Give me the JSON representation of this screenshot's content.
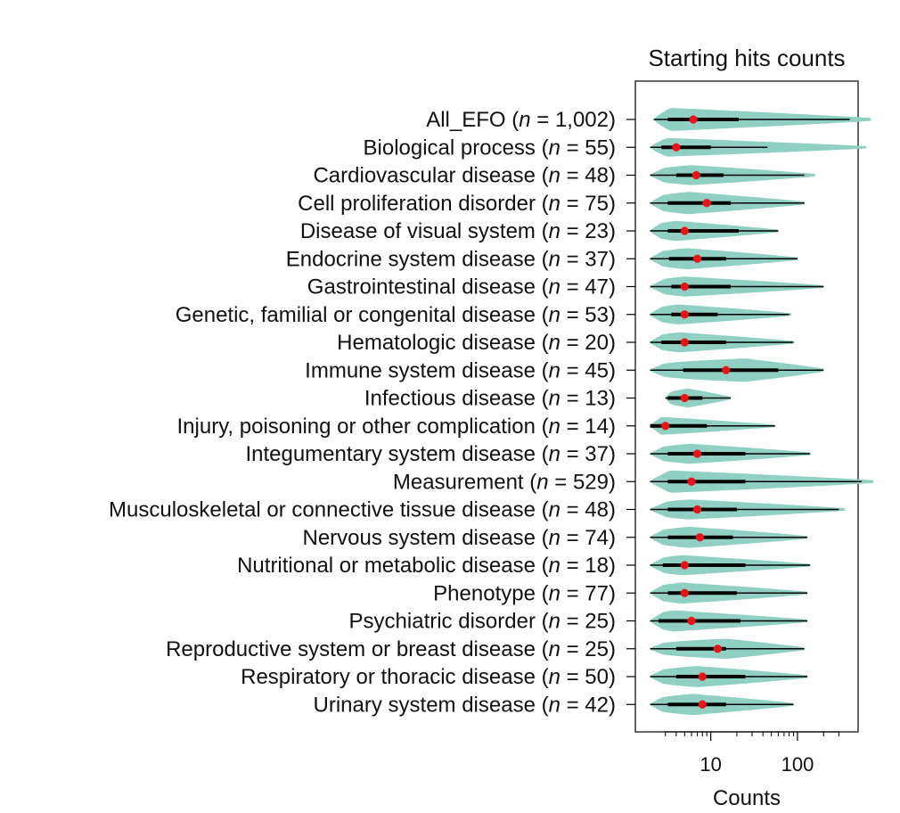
{
  "chart_data": {
    "type": "violin",
    "title": "Starting hits counts",
    "xlabel": "Counts",
    "ylabel": "",
    "x_scale": "log10",
    "xlim": [
      1.35,
      500
    ],
    "x_ticks": [
      {
        "value": 10,
        "label": "10"
      },
      {
        "value": 100,
        "label": "100"
      }
    ],
    "colors": {
      "violin": "#8fd0c3",
      "median": "#e8161b",
      "line": "#000000"
    },
    "categories": [
      {
        "name": "All_EFO",
        "n": "1,002",
        "min": 2.2,
        "q1": 3.2,
        "median": 6.3,
        "q3": 21,
        "max": 700,
        "whisker_hi": 400,
        "width": 0.42,
        "peak": 0.06
      },
      {
        "name": "Biological process",
        "n": "55",
        "min": 2.0,
        "q1": 2.7,
        "median": 4.0,
        "q3": 10,
        "max": 620,
        "whisker_hi": 45,
        "width": 0.34,
        "peak": 0.06
      },
      {
        "name": "Cardiovascular disease",
        "n": "48",
        "min": 2.0,
        "q1": 4.0,
        "median": 6.8,
        "q3": 14,
        "max": 160,
        "whisker_hi": 120,
        "width": 0.36,
        "peak": 0.25
      },
      {
        "name": "Cell proliferation disorder",
        "n": "75",
        "min": 2.0,
        "q1": 3.2,
        "median": 9.0,
        "q3": 17,
        "max": 120,
        "whisker_hi": 120,
        "width": 0.4,
        "peak": 0.25
      },
      {
        "name": "Disease of visual system",
        "n": "23",
        "min": 2.0,
        "q1": 3.2,
        "median": 5.0,
        "q3": 21,
        "max": 60,
        "whisker_hi": 60,
        "width": 0.36,
        "peak": 0.2
      },
      {
        "name": "Endocrine system disease",
        "n": "37",
        "min": 2.0,
        "q1": 3.3,
        "median": 7.0,
        "q3": 15,
        "max": 100,
        "whisker_hi": 100,
        "width": 0.38,
        "peak": 0.25
      },
      {
        "name": "Gastrointestinal disease",
        "n": "47",
        "min": 2.0,
        "q1": 3.5,
        "median": 5.0,
        "q3": 17,
        "max": 200,
        "whisker_hi": 200,
        "width": 0.36,
        "peak": 0.2
      },
      {
        "name": "Genetic, familial or congenital disease",
        "n": "53",
        "min": 2.0,
        "q1": 3.5,
        "median": 5.0,
        "q3": 12,
        "max": 85,
        "whisker_hi": 80,
        "width": 0.36,
        "peak": 0.2
      },
      {
        "name": "Hematologic disease",
        "n": "20",
        "min": 2.0,
        "q1": 2.7,
        "median": 5.0,
        "q3": 15,
        "max": 90,
        "whisker_hi": 90,
        "width": 0.36,
        "peak": 0.2
      },
      {
        "name": "Immune system disease",
        "n": "45",
        "min": 2.0,
        "q1": 4.8,
        "median": 15,
        "q3": 60,
        "max": 200,
        "whisker_hi": 200,
        "width": 0.42,
        "peak": 0.55
      },
      {
        "name": "Infectious disease",
        "n": "13",
        "min": 3.0,
        "q1": 3.2,
        "median": 5.0,
        "q3": 8.0,
        "max": 17,
        "whisker_hi": 17,
        "width": 0.34,
        "peak": 0.35
      },
      {
        "name": "Injury, poisoning or other complication",
        "n": "14",
        "min": 2.0,
        "q1": 2.0,
        "median": 3.0,
        "q3": 9.0,
        "max": 55,
        "whisker_hi": 55,
        "width": 0.32,
        "peak": 0.1
      },
      {
        "name": "Integumentary system disease",
        "n": "37",
        "min": 2.0,
        "q1": 3.2,
        "median": 7.0,
        "q3": 25,
        "max": 140,
        "whisker_hi": 140,
        "width": 0.36,
        "peak": 0.25
      },
      {
        "name": "Measurement",
        "n": "529",
        "min": 2.0,
        "q1": 3.2,
        "median": 6.0,
        "q3": 25,
        "max": 750,
        "whisker_hi": 550,
        "width": 0.4,
        "peak": 0.1
      },
      {
        "name": "Musculoskeletal or connective tissue disease",
        "n": "48",
        "min": 2.0,
        "q1": 3.2,
        "median": 7.0,
        "q3": 20,
        "max": 350,
        "whisker_hi": 300,
        "width": 0.36,
        "peak": 0.2
      },
      {
        "name": "Nervous system disease",
        "n": "74",
        "min": 2.0,
        "q1": 3.2,
        "median": 7.5,
        "q3": 18,
        "max": 130,
        "whisker_hi": 130,
        "width": 0.38,
        "peak": 0.25
      },
      {
        "name": "Nutritional or metabolic disease",
        "n": "18",
        "min": 2.0,
        "q1": 2.8,
        "median": 5.0,
        "q3": 25,
        "max": 140,
        "whisker_hi": 140,
        "width": 0.36,
        "peak": 0.2
      },
      {
        "name": "Phenotype",
        "n": "77",
        "min": 2.0,
        "q1": 3.2,
        "median": 5.0,
        "q3": 20,
        "max": 130,
        "whisker_hi": 130,
        "width": 0.38,
        "peak": 0.2
      },
      {
        "name": "Psychiatric disorder",
        "n": "25",
        "min": 2.0,
        "q1": 2.5,
        "median": 6.0,
        "q3": 22,
        "max": 130,
        "whisker_hi": 130,
        "width": 0.38,
        "peak": 0.15
      },
      {
        "name": "Reproductive system or breast disease",
        "n": "25",
        "min": 2.0,
        "q1": 4.0,
        "median": 12,
        "q3": 15,
        "max": 120,
        "whisker_hi": 120,
        "width": 0.36,
        "peak": 0.5
      },
      {
        "name": "Respiratory or thoracic disease",
        "n": "50",
        "min": 2.0,
        "q1": 4.0,
        "median": 8.0,
        "q3": 25,
        "max": 130,
        "whisker_hi": 130,
        "width": 0.38,
        "peak": 0.3
      },
      {
        "name": "Urinary system disease",
        "n": "42",
        "min": 2.0,
        "q1": 3.2,
        "median": 8.0,
        "q3": 15,
        "max": 90,
        "whisker_hi": 90,
        "width": 0.38,
        "peak": 0.3
      }
    ]
  }
}
